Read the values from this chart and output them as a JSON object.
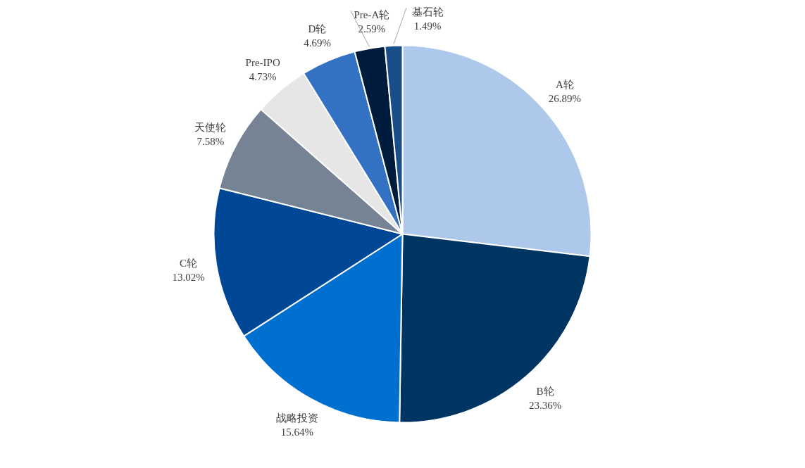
{
  "chart_data": {
    "type": "pie",
    "categories": [
      "A轮",
      "B轮",
      "战略投资",
      "C轮",
      "天使轮",
      "Pre-IPO",
      "D轮",
      "Pre-A轮",
      "基石轮"
    ],
    "values": [
      26.89,
      23.36,
      15.64,
      13.02,
      7.58,
      4.73,
      4.69,
      2.59,
      1.49
    ],
    "value_labels": [
      "26.89%",
      "23.36%",
      "15.64%",
      "13.02%",
      "7.58%",
      "4.73%",
      "4.69%",
      "2.59%",
      "1.49%"
    ],
    "colors": [
      "#adc8ea",
      "#003462",
      "#0070d0",
      "#004896",
      "#768395",
      "#e6e6e6",
      "#3371c2",
      "#001c3c",
      "#1a4e8a"
    ]
  }
}
